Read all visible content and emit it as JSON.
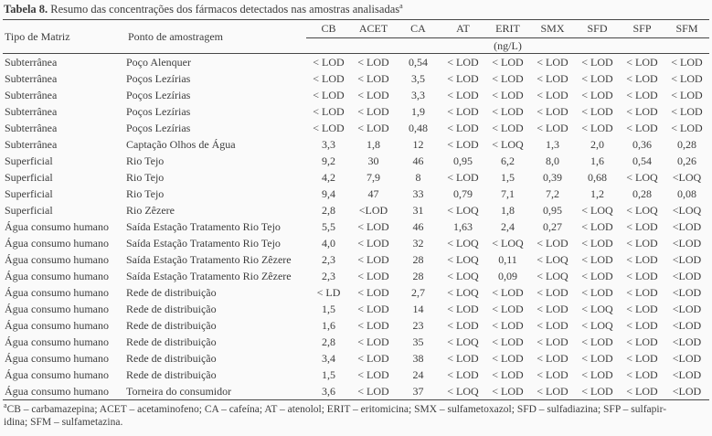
{
  "title": {
    "bold": "Tabela 8.",
    "rest": " Resumo das concentrações dos fármacos detectados nas amostras analisadas",
    "sup": "a"
  },
  "table": {
    "row_headers": [
      "Tipo de Matriz",
      "Ponto de amostragem"
    ],
    "columns": [
      "CB",
      "ACET",
      "CA",
      "AT",
      "ERIT",
      "SMX",
      "SFD",
      "SFP",
      "SFM"
    ],
    "unit": "(ng/L)",
    "rows": [
      {
        "matrix": "Subterrânea",
        "point": "Poço Alenquer",
        "values": [
          "< LOD",
          "< LOD",
          "0,54",
          "< LOD",
          "< LOD",
          "< LOD",
          "< LOD",
          "< LOD",
          "< LOD"
        ]
      },
      {
        "matrix": "Subterrânea",
        "point": "Poços Lezírias",
        "values": [
          "< LOD",
          "< LOD",
          "3,5",
          "< LOD",
          "< LOD",
          "< LOD",
          "< LOD",
          "< LOD",
          "< LOD"
        ]
      },
      {
        "matrix": "Subterrânea",
        "point": "Poços Lezírias",
        "values": [
          "< LOD",
          "< LOD",
          "3,3",
          "< LOD",
          "< LOD",
          "< LOD",
          "< LOD",
          "< LOD",
          "< LOD"
        ]
      },
      {
        "matrix": "Subterrânea",
        "point": "Poços Lezírias",
        "values": [
          "< LOD",
          "< LOD",
          "1,9",
          "< LOD",
          "< LOD",
          "< LOD",
          "< LOD",
          "< LOD",
          "< LOD"
        ]
      },
      {
        "matrix": "Subterrânea",
        "point": "Poços Lezírias",
        "values": [
          "< LOD",
          "< LOD",
          "0,48",
          "< LOD",
          "< LOD",
          "< LOD",
          "< LOD",
          "< LOD",
          "< LOD"
        ]
      },
      {
        "matrix": "Subterrânea",
        "point": "Captação Olhos de Água",
        "values": [
          "3,3",
          "1,8",
          "12",
          "< LOD",
          "< LOQ",
          "1,3",
          "2,0",
          "0,36",
          "0,28"
        ]
      },
      {
        "matrix": "Superficial",
        "point": "Rio Tejo",
        "values": [
          "9,2",
          "30",
          "46",
          "0,95",
          "6,2",
          "8,0",
          "1,6",
          "0,54",
          "0,26"
        ]
      },
      {
        "matrix": "Superficial",
        "point": "Rio Tejo",
        "values": [
          "4,2",
          "7,9",
          "8",
          "< LOD",
          "1,5",
          "0,39",
          "0,68",
          "< LOQ",
          "<LOQ"
        ]
      },
      {
        "matrix": "Superficial",
        "point": "Rio Tejo",
        "values": [
          "9,4",
          "47",
          "33",
          "0,79",
          "7,1",
          "7,2",
          "1,2",
          "0,28",
          "0,08"
        ]
      },
      {
        "matrix": "Superficial",
        "point": "Rio Zêzere",
        "values": [
          "2,8",
          "<LOD",
          "31",
          "< LOQ",
          "1,8",
          "0,95",
          "< LOQ",
          "< LOQ",
          "<LOQ"
        ]
      },
      {
        "matrix": "Água consumo humano",
        "point": "Saída Estação Tratamento Rio Tejo",
        "values": [
          "5,5",
          "< LOD",
          "46",
          "1,63",
          "2,4",
          "0,27",
          "< LOD",
          "< LOD",
          "<LOD"
        ]
      },
      {
        "matrix": "Água consumo humano",
        "point": "Saída Estação Tratamento Rio Tejo",
        "values": [
          "4,0",
          "< LOD",
          "32",
          "< LOQ",
          "< LOQ",
          "< LOD",
          "< LOD",
          "< LOD",
          "<LOD"
        ]
      },
      {
        "matrix": "Água consumo humano",
        "point": "Saída Estação Tratamento Rio Zêzere",
        "values": [
          "2,3",
          "< LOD",
          "28",
          "< LOQ",
          "0,11",
          "< LOQ",
          "< LOD",
          "< LOD",
          "<LOD"
        ]
      },
      {
        "matrix": "Água consumo humano",
        "point": "Saída Estação Tratamento Rio Zêzere",
        "values": [
          "2,3",
          "< LOD",
          "28",
          "< LOQ",
          "0,09",
          "< LOQ",
          "< LOD",
          "< LOD",
          "<LOD"
        ]
      },
      {
        "matrix": "Água consumo humano",
        "point": "Rede de distribuição",
        "values": [
          "< LD",
          "< LOD",
          "2,7",
          "< LOQ",
          "< LOD",
          "< LOD",
          "< LOD",
          "< LOD",
          "<LOD"
        ]
      },
      {
        "matrix": "Água consumo humano",
        "point": "Rede de distribuição",
        "values": [
          "1,5",
          "< LOD",
          "14",
          "< LOD",
          "< LOD",
          "< LOD",
          "< LOQ",
          "< LOD",
          "<LOD"
        ]
      },
      {
        "matrix": "Água consumo humano",
        "point": "Rede de distribuição",
        "values": [
          "1,6",
          "< LOD",
          "23",
          "< LOD",
          "< LOD",
          "< LOD",
          "< LOQ",
          "< LOD",
          "<LOD"
        ]
      },
      {
        "matrix": "Água consumo humano",
        "point": "Rede de distribuição",
        "values": [
          "2,8",
          "< LOD",
          "35",
          "< LOQ",
          "< LOD",
          "< LOD",
          "< LOD",
          "< LOD",
          "<LOD"
        ]
      },
      {
        "matrix": "Água consumo humano",
        "point": "Rede de distribuição",
        "values": [
          "3,4",
          "< LOD",
          "38",
          "< LOD",
          "< LOD",
          "< LOD",
          "< LOD",
          "< LOD",
          "<LOD"
        ]
      },
      {
        "matrix": "Água consumo humano",
        "point": "Rede de distribuição",
        "values": [
          "1,5",
          "< LOD",
          "24",
          "< LOD",
          "< LOD",
          "< LOD",
          "< LOD",
          "< LOD",
          "<LOD"
        ]
      },
      {
        "matrix": "Água consumo humano",
        "point": "Torneira do consumidor",
        "values": [
          "3,6",
          "< LOD",
          "37",
          "< LOQ",
          "< LOD",
          "< LOD",
          "< LOD",
          "< LOD",
          "<LOD"
        ]
      }
    ]
  },
  "footnote": {
    "sup": "a",
    "line1": "CB – carbamazepina; ACET – acetaminofeno; CA – cafeína; AT – atenolol; ERIT – eritomicina; SMX – sulfametoxazol; SFD – sulfadiazina; SFP – sulfapir-",
    "line2": "idina; SFM – sulfametazina."
  }
}
